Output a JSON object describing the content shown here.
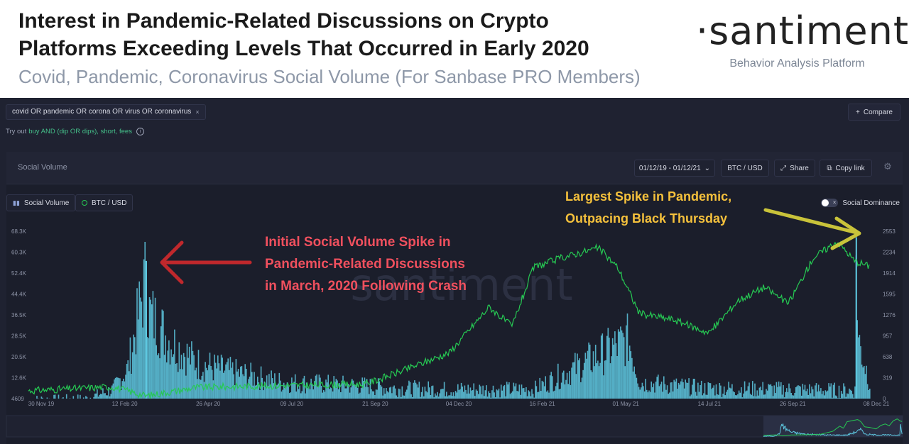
{
  "header": {
    "title_line1": "Interest in Pandemic-Related Discussions on Crypto",
    "title_line2": "Platforms Exceeding Levels That Occurred in Early 2020",
    "subtitle": "Covid, Pandemic, Coronavirus Social Volume (For Sanbase PRO Members)",
    "brand_logo": "·santiment·",
    "brand_tagline": "Behavior Analysis Platform"
  },
  "app": {
    "search_query": "covid OR pandemic OR corona OR virus OR coronavirus",
    "chip_close": "×",
    "compare_label": "Compare",
    "compare_icon": "+",
    "tryout_prefix": "Try out",
    "tryout_link": "buy AND (dip OR dips), short, fees",
    "info_icon": "i",
    "card_title": "Social Volume",
    "date_range": "01/12/19 - 01/12/21",
    "date_chevron": "⌄",
    "pair_label": "BTC / USD",
    "share_label": "Share",
    "share_icon": "⤢",
    "copy_label": "Copy link",
    "copy_icon": "⧉",
    "gear_icon": "⚙",
    "legend_social": "Social Volume",
    "legend_btc": "BTC / USD",
    "dominance_label": "Social Dominance",
    "toggle_x": "×",
    "watermark": "santiment"
  },
  "annotations": {
    "red_line1": "Initial Social Volume Spike in",
    "red_line2": "Pandemic-Related Discussions",
    "red_line3": "in March, 2020 Following Crash",
    "yellow_line1": "Largest Spike in Pandemic,",
    "yellow_line2": "Outpacing Black Thursday"
  },
  "colors": {
    "social_volume": "#5ec8e0",
    "btc_line": "#26c953",
    "red_annotation": "#c0282c",
    "yellow_annotation": "#c9c33a",
    "background": "#1b1e2b"
  },
  "chart_data": {
    "type": "bar",
    "x_start": "2019-11-30",
    "x_end": "2021-12-08",
    "x_tick_labels": [
      "30 Nov 19",
      "12 Feb 20",
      "26 Apr 20",
      "09 Jul 20",
      "21 Sep 20",
      "04 Dec 20",
      "16 Feb 21",
      "01 May 21",
      "14 Jul 21",
      "26 Sep 21",
      "08 Dec 21"
    ],
    "left_axis_ticks": [
      "68.3K",
      "60.3K",
      "52.4K",
      "44.4K",
      "36.5K",
      "28.5K",
      "20.5K",
      "12.6K",
      "4609"
    ],
    "left_ylim": [
      4609,
      68300
    ],
    "right_axis_ticks": [
      "2553",
      "2234",
      "1914",
      "1595",
      "1276",
      "957",
      "638",
      "319",
      "0"
    ],
    "right_ylim": [
      0,
      2553
    ],
    "grid": false,
    "series": [
      {
        "name": "Social Volume",
        "axis": "left",
        "values": [
          {
            "x": "2019-11-30",
            "y": 4800
          },
          {
            "x": "2020-01-20",
            "y": 5200
          },
          {
            "x": "2020-02-12",
            "y": 9000
          },
          {
            "x": "2020-02-25",
            "y": 18000
          },
          {
            "x": "2020-03-12",
            "y": 57000
          },
          {
            "x": "2020-03-14",
            "y": 42000
          },
          {
            "x": "2020-03-20",
            "y": 38000
          },
          {
            "x": "2020-04-01",
            "y": 30000
          },
          {
            "x": "2020-04-26",
            "y": 20000
          },
          {
            "x": "2020-05-20",
            "y": 17000
          },
          {
            "x": "2020-07-09",
            "y": 12000
          },
          {
            "x": "2020-09-21",
            "y": 10500
          },
          {
            "x": "2020-10-15",
            "y": 9500
          },
          {
            "x": "2020-12-04",
            "y": 9000
          },
          {
            "x": "2021-02-16",
            "y": 9000
          },
          {
            "x": "2021-05-10",
            "y": 30000
          },
          {
            "x": "2021-05-20",
            "y": 12000
          },
          {
            "x": "2021-07-14",
            "y": 9500
          },
          {
            "x": "2021-09-26",
            "y": 9000
          },
          {
            "x": "2021-11-25",
            "y": 8500
          },
          {
            "x": "2021-11-26",
            "y": 66000
          },
          {
            "x": "2021-11-28",
            "y": 30000
          },
          {
            "x": "2021-12-08",
            "y": 12000
          }
        ]
      },
      {
        "name": "BTC / USD",
        "axis": "right",
        "values": [
          {
            "x": "2019-11-30",
            "y": 120
          },
          {
            "x": "2020-02-12",
            "y": 180
          },
          {
            "x": "2020-03-12",
            "y": 40
          },
          {
            "x": "2020-04-26",
            "y": 170
          },
          {
            "x": "2020-07-09",
            "y": 200
          },
          {
            "x": "2020-09-21",
            "y": 220
          },
          {
            "x": "2020-10-20",
            "y": 400
          },
          {
            "x": "2020-12-04",
            "y": 700
          },
          {
            "x": "2021-01-08",
            "y": 1400
          },
          {
            "x": "2021-01-28",
            "y": 1100
          },
          {
            "x": "2021-02-16",
            "y": 2000
          },
          {
            "x": "2021-03-13",
            "y": 2150
          },
          {
            "x": "2021-04-14",
            "y": 2300
          },
          {
            "x": "2021-05-01",
            "y": 2000
          },
          {
            "x": "2021-05-20",
            "y": 1300
          },
          {
            "x": "2021-06-20",
            "y": 1200
          },
          {
            "x": "2021-07-20",
            "y": 1000
          },
          {
            "x": "2021-08-15",
            "y": 1500
          },
          {
            "x": "2021-09-07",
            "y": 1700
          },
          {
            "x": "2021-09-28",
            "y": 1450
          },
          {
            "x": "2021-10-20",
            "y": 2150
          },
          {
            "x": "2021-11-10",
            "y": 2400
          },
          {
            "x": "2021-11-25",
            "y": 2100
          },
          {
            "x": "2021-12-08",
            "y": 2020
          }
        ]
      }
    ]
  }
}
